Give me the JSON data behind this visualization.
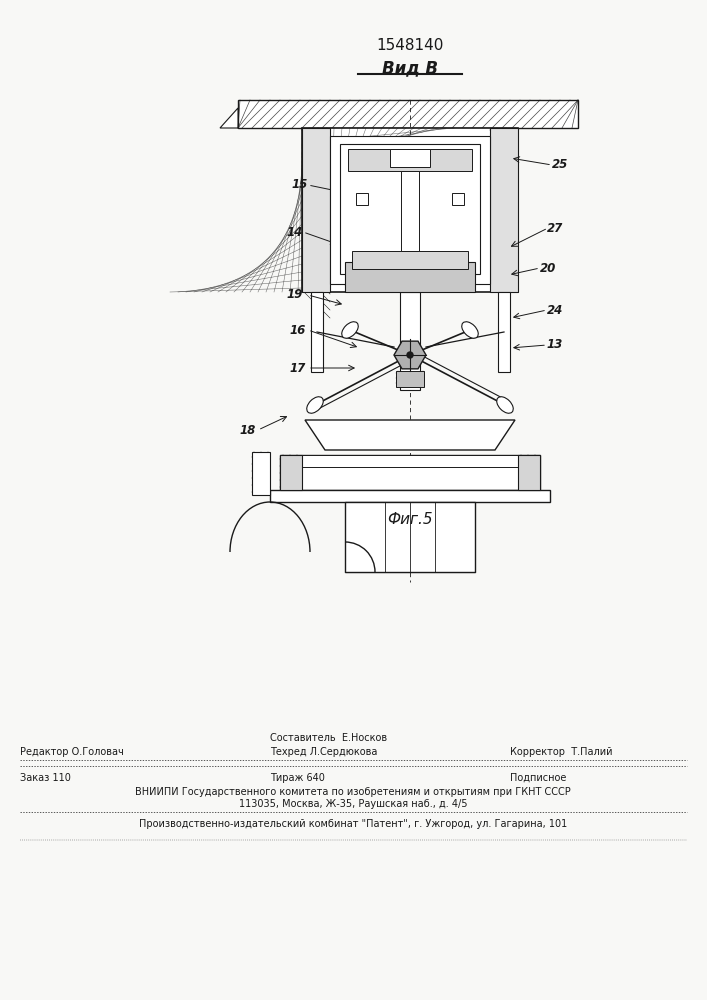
{
  "patent_number": "1548140",
  "view_label": "Вид В",
  "figure_label": "Фиг.5",
  "bg_color": "#f8f8f6",
  "drawing_color": "#1a1a1a",
  "footer": {
    "editor_label": "Редактор О.Головач",
    "composer_label": "Составитель  Е.Носков",
    "techred_label": "Техред Л.Сердюкова",
    "corrector_label": "Корректор  Т.Палий",
    "order_label": "Заказ 110",
    "tirazh_label": "Тираж 640",
    "podpisnoe_label": "Подписное",
    "vniip_line1": "ВНИИПИ Государственного комитета по изобретениям и открытиям при ГКНТ СССР",
    "vniip_line2": "113035, Москва, Ж-35, Раушская наб., д. 4/5",
    "production_line": "Производственно-издательский комбинат \"Патент\", г. Ужгород, ул. Гагарина, 101"
  }
}
